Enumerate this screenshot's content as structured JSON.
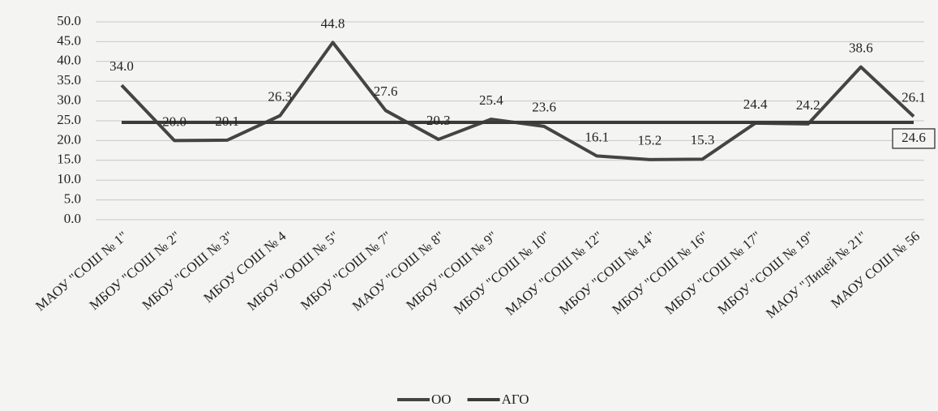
{
  "chart_data": {
    "type": "line",
    "categories": [
      "МАОУ \"СОШ № 1\"",
      "МБОУ \"СОШ № 2\"",
      "МБОУ \"СОШ № 3\"",
      "МБОУ СОШ № 4",
      "МБОУ \"ООШ № 5\"",
      "МБОУ \"СОШ № 7\"",
      "МАОУ \"СОШ № 8\"",
      "МБОУ \"СОШ № 9\"",
      "МБОУ \"СОШ № 10\"",
      "МАОУ \"СОШ № 12\"",
      "МБОУ \"СОШ № 14\"",
      "МБОУ \"СОШ № 16\"",
      "МБОУ \"СОШ № 17\"",
      "МБОУ \"СОШ № 19\"",
      "МАОУ \"Лицей № 21\"",
      "МАОУ СОШ № 56"
    ],
    "series": [
      {
        "name": "ОО",
        "color": "#444444",
        "values": [
          34.0,
          20.0,
          20.1,
          26.3,
          44.8,
          27.6,
          20.3,
          25.4,
          23.6,
          16.1,
          15.2,
          15.3,
          24.4,
          24.2,
          38.6,
          26.1
        ],
        "value_labels": [
          "34.0",
          "20.0",
          "20.1",
          "26.3",
          "44.8",
          "27.6",
          "20.3",
          "25.4",
          "23.6",
          "16.1",
          "15.2",
          "15.3",
          "24.4",
          "24.2",
          "38.6",
          "26.1"
        ]
      },
      {
        "name": "АГО",
        "color": "#3a3a3a",
        "values": [
          24.6,
          24.6,
          24.6,
          24.6,
          24.6,
          24.6,
          24.6,
          24.6,
          24.6,
          24.6,
          24.6,
          24.6,
          24.6,
          24.6,
          24.6,
          24.6
        ]
      }
    ],
    "ylim": [
      0,
      50
    ],
    "yticks": [
      {
        "value": 0,
        "label": "0.0"
      },
      {
        "value": 5,
        "label": "5.0"
      },
      {
        "value": 10,
        "label": "10.0"
      },
      {
        "value": 15,
        "label": "15.0"
      },
      {
        "value": 20,
        "label": "20.0"
      },
      {
        "value": 25,
        "label": "25.0"
      },
      {
        "value": 30,
        "label": "30.0"
      },
      {
        "value": 35,
        "label": "35.0"
      },
      {
        "value": 40,
        "label": "40.0"
      },
      {
        "value": 45,
        "label": "45.0"
      },
      {
        "value": 50,
        "label": "50.0"
      }
    ],
    "grid": true,
    "legend": "bottom"
  }
}
